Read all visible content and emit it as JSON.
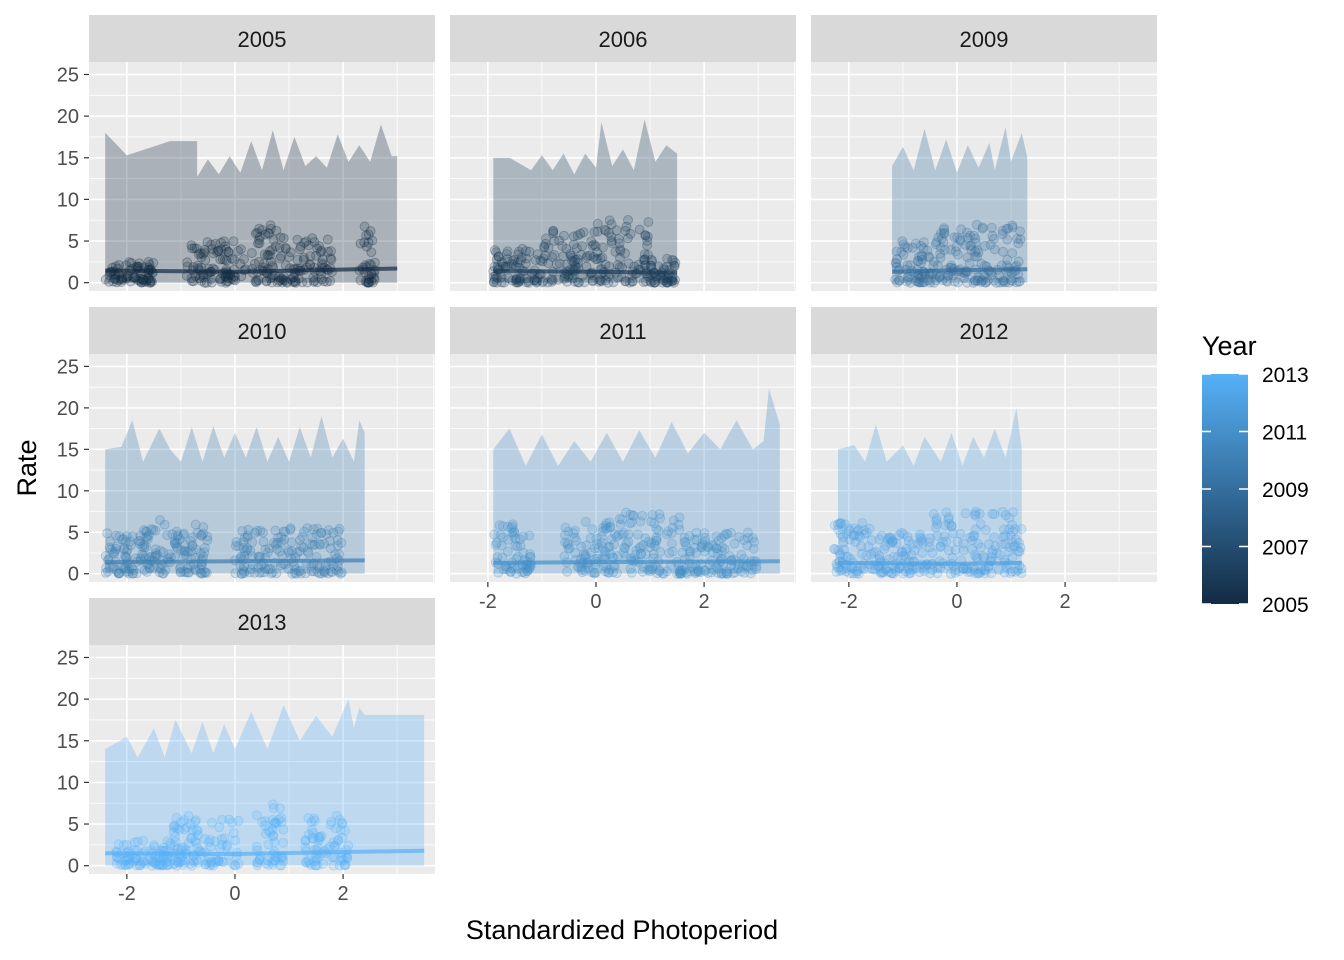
{
  "chart_data": {
    "type": "scatter",
    "facet_variable": "Year",
    "panels": [
      {
        "year": 2005,
        "label": "2005",
        "x_range": [
          -2.4,
          3.0
        ],
        "ribbon_upper": [
          [
            -2.4,
            18
          ],
          [
            -2.0,
            15.3
          ],
          [
            -1.2,
            17
          ],
          [
            -0.7,
            17
          ],
          [
            -0.7,
            12.7
          ],
          [
            -0.5,
            14.8
          ],
          [
            -0.3,
            13
          ],
          [
            -0.1,
            15.2
          ],
          [
            0.1,
            13.2
          ],
          [
            0.3,
            17
          ],
          [
            0.5,
            13.5
          ],
          [
            0.7,
            18.3
          ],
          [
            0.9,
            13.5
          ],
          [
            1.1,
            17.5
          ],
          [
            1.3,
            14
          ],
          [
            1.5,
            15.2
          ],
          [
            1.7,
            13.8
          ],
          [
            1.9,
            17.8
          ],
          [
            2.1,
            14.5
          ],
          [
            2.3,
            16.5
          ],
          [
            2.5,
            14.5
          ],
          [
            2.7,
            19
          ],
          [
            2.9,
            15.2
          ],
          [
            3.0,
            15.2
          ]
        ],
        "fit": [
          [
            -2.4,
            1.45
          ],
          [
            0,
            1.3
          ],
          [
            3.0,
            1.7
          ]
        ],
        "point_clusters": [
          {
            "x": [
              -0.9,
              0.2
            ],
            "ymax": 5
          },
          {
            "x": [
              0.3,
              0.8
            ],
            "ymax": 7
          },
          {
            "x": [
              0.8,
              1.8
            ],
            "ymax": 5.5
          },
          {
            "x": [
              2.3,
              2.6
            ],
            "ymax": 7
          },
          {
            "x": [
              -2.4,
              -1.5
            ],
            "ymax": 2.5
          }
        ]
      },
      {
        "year": 2006,
        "label": "2006",
        "x_range": [
          -2.4,
          1.5
        ],
        "ribbon_upper": [
          [
            -1.9,
            15
          ],
          [
            -1.6,
            15
          ],
          [
            -1.2,
            13.5
          ],
          [
            -1.0,
            15.3
          ],
          [
            -0.8,
            13.5
          ],
          [
            -0.6,
            15.5
          ],
          [
            -0.4,
            13
          ],
          [
            -0.2,
            15.5
          ],
          [
            0.0,
            13.8
          ],
          [
            0.1,
            19.3
          ],
          [
            0.3,
            14
          ],
          [
            0.5,
            16
          ],
          [
            0.7,
            13.5
          ],
          [
            0.9,
            19.6
          ],
          [
            1.1,
            14.5
          ],
          [
            1.3,
            16.5
          ],
          [
            1.5,
            15.5
          ]
        ],
        "fit": [
          [
            -1.9,
            1.4
          ],
          [
            0,
            1.3
          ],
          [
            1.5,
            1.2
          ]
        ],
        "point_clusters": [
          {
            "x": [
              -1.9,
              -1.0
            ],
            "ymax": 4.5
          },
          {
            "x": [
              -1.0,
              0.0
            ],
            "ymax": 6.5
          },
          {
            "x": [
              0.0,
              1.0
            ],
            "ymax": 8
          },
          {
            "x": [
              1.0,
              1.5
            ],
            "ymax": 3
          }
        ]
      },
      {
        "year": 2009,
        "label": "2009",
        "x_range": [
          -1.2,
          1.3
        ],
        "ribbon_upper": [
          [
            -1.2,
            14
          ],
          [
            -1.0,
            16.3
          ],
          [
            -0.8,
            13.5
          ],
          [
            -0.6,
            18.5
          ],
          [
            -0.4,
            13.5
          ],
          [
            -0.2,
            17.2
          ],
          [
            0.0,
            13.2
          ],
          [
            0.2,
            16.5
          ],
          [
            0.4,
            13.8
          ],
          [
            0.6,
            16.8
          ],
          [
            0.7,
            13.5
          ],
          [
            0.9,
            18.7
          ],
          [
            1.0,
            14.5
          ],
          [
            1.2,
            18
          ],
          [
            1.3,
            15
          ]
        ],
        "fit": [
          [
            -1.2,
            1.3
          ],
          [
            0,
            1.5
          ],
          [
            1.3,
            1.6
          ]
        ],
        "point_clusters": [
          {
            "x": [
              -1.2,
              -0.5
            ],
            "ymax": 5
          },
          {
            "x": [
              -0.5,
              0.2
            ],
            "ymax": 7.5
          },
          {
            "x": [
              0.2,
              1.2
            ],
            "ymax": 7
          }
        ]
      },
      {
        "year": 2010,
        "label": "2010",
        "x_range": [
          -2.4,
          2.4
        ],
        "ribbon_upper": [
          [
            -2.4,
            15
          ],
          [
            -2.1,
            15.3
          ],
          [
            -1.9,
            18.5
          ],
          [
            -1.7,
            13.5
          ],
          [
            -1.4,
            17.5
          ],
          [
            -1.2,
            15
          ],
          [
            -1.0,
            13.5
          ],
          [
            -0.8,
            17.7
          ],
          [
            -0.6,
            13.5
          ],
          [
            -0.4,
            17.8
          ],
          [
            -0.2,
            14
          ],
          [
            0.0,
            17
          ],
          [
            0.2,
            14
          ],
          [
            0.4,
            17.7
          ],
          [
            0.6,
            13.5
          ],
          [
            0.8,
            16.5
          ],
          [
            1.0,
            13.5
          ],
          [
            1.2,
            17.7
          ],
          [
            1.4,
            14
          ],
          [
            1.6,
            19
          ],
          [
            1.8,
            14
          ],
          [
            2.0,
            16.3
          ],
          [
            2.2,
            13.5
          ],
          [
            2.3,
            18.5
          ],
          [
            2.4,
            17
          ]
        ],
        "fit": [
          [
            -2.4,
            1.4
          ],
          [
            0,
            1.5
          ],
          [
            2.4,
            1.6
          ]
        ],
        "point_clusters": [
          {
            "x": [
              -2.4,
              -1.7
            ],
            "ymax": 5
          },
          {
            "x": [
              -1.7,
              -1.0
            ],
            "ymax": 6.5
          },
          {
            "x": [
              -1.0,
              -0.5
            ],
            "ymax": 6
          },
          {
            "x": [
              0.0,
              2.0
            ],
            "ymax": 5.5
          }
        ]
      },
      {
        "year": 2011,
        "label": "2011",
        "x_range": [
          -1.9,
          3.4
        ],
        "ribbon_upper": [
          [
            -1.9,
            15
          ],
          [
            -1.6,
            17.5
          ],
          [
            -1.3,
            13
          ],
          [
            -1.0,
            16.8
          ],
          [
            -0.7,
            13
          ],
          [
            -0.4,
            16
          ],
          [
            -0.1,
            13.5
          ],
          [
            0.2,
            17
          ],
          [
            0.5,
            13.5
          ],
          [
            0.8,
            17.3
          ],
          [
            1.1,
            14
          ],
          [
            1.4,
            18.3
          ],
          [
            1.7,
            14.5
          ],
          [
            2.0,
            17
          ],
          [
            2.3,
            15
          ],
          [
            2.6,
            18.5
          ],
          [
            2.9,
            15
          ],
          [
            3.1,
            16
          ],
          [
            3.2,
            22.3
          ],
          [
            3.4,
            18
          ]
        ],
        "fit": [
          [
            -1.9,
            1.3
          ],
          [
            0,
            1.4
          ],
          [
            3.4,
            1.5
          ]
        ],
        "point_clusters": [
          {
            "x": [
              -1.9,
              -1.2
            ],
            "ymax": 6
          },
          {
            "x": [
              -0.6,
              0.3
            ],
            "ymax": 6.5
          },
          {
            "x": [
              0.3,
              1.6
            ],
            "ymax": 7.5
          },
          {
            "x": [
              1.6,
              3.0
            ],
            "ymax": 5
          }
        ]
      },
      {
        "year": 2012,
        "label": "2012",
        "x_range": [
          -2.3,
          1.2
        ],
        "ribbon_upper": [
          [
            -2.2,
            15
          ],
          [
            -1.9,
            15.5
          ],
          [
            -1.7,
            13.5
          ],
          [
            -1.5,
            18
          ],
          [
            -1.3,
            13.5
          ],
          [
            -1.0,
            15.5
          ],
          [
            -0.8,
            13
          ],
          [
            -0.6,
            16.5
          ],
          [
            -0.3,
            13.5
          ],
          [
            -0.1,
            17
          ],
          [
            0.1,
            13
          ],
          [
            0.3,
            16.5
          ],
          [
            0.5,
            14
          ],
          [
            0.7,
            17.5
          ],
          [
            0.9,
            14
          ],
          [
            1.1,
            20
          ],
          [
            1.2,
            15
          ]
        ],
        "fit": [
          [
            -2.2,
            1.3
          ],
          [
            0,
            1.2
          ],
          [
            1.2,
            1.3
          ]
        ],
        "point_clusters": [
          {
            "x": [
              -2.3,
              -1.5
            ],
            "ymax": 6.5
          },
          {
            "x": [
              -1.5,
              -0.6
            ],
            "ymax": 5
          },
          {
            "x": [
              -0.6,
              1.2
            ],
            "ymax": 7.5
          }
        ]
      },
      {
        "year": 2013,
        "label": "2013",
        "x_range": [
          -2.4,
          3.6
        ],
        "ribbon_upper": [
          [
            -2.4,
            14
          ],
          [
            -2.0,
            15.5
          ],
          [
            -1.8,
            13
          ],
          [
            -1.5,
            16.5
          ],
          [
            -1.3,
            13
          ],
          [
            -1.1,
            17.5
          ],
          [
            -0.8,
            13.5
          ],
          [
            -0.6,
            17.3
          ],
          [
            -0.4,
            13.5
          ],
          [
            -0.2,
            17
          ],
          [
            0.0,
            14
          ],
          [
            0.3,
            18.5
          ],
          [
            0.6,
            14
          ],
          [
            0.9,
            19.3
          ],
          [
            1.2,
            15
          ],
          [
            1.5,
            18
          ],
          [
            1.8,
            15.5
          ],
          [
            2.1,
            20
          ],
          [
            2.2,
            16.5
          ],
          [
            2.3,
            19
          ],
          [
            2.4,
            18.1
          ],
          [
            3.5,
            18.1
          ]
        ],
        "fit": [
          [
            -2.4,
            1.5
          ],
          [
            0,
            1.4
          ],
          [
            3.5,
            1.8
          ]
        ],
        "point_clusters": [
          {
            "x": [
              -1.2,
              0.1
            ],
            "ymax": 6
          },
          {
            "x": [
              0.4,
              0.9
            ],
            "ymax": 7.5
          },
          {
            "x": [
              1.3,
              2.1
            ],
            "ymax": 6
          },
          {
            "x": [
              -2.2,
              -1.2
            ],
            "ymax": 3
          }
        ]
      }
    ],
    "x_ticks": [
      -2,
      0,
      2
    ],
    "x_tick_labels": [
      "-2",
      "0",
      "2"
    ],
    "x_range": [
      -2.7,
      3.7
    ],
    "y_ticks": [
      0,
      5,
      10,
      15,
      20,
      25
    ],
    "y_tick_labels": [
      "0",
      "5",
      "10",
      "15",
      "20",
      "25"
    ],
    "y_range": [
      -1.0,
      26.5
    ],
    "xlabel": "Standardized Photoperiod",
    "ylabel": "Rate",
    "legend": {
      "title": "Year",
      "position": "right",
      "type": "continuous colorbar",
      "range": [
        2005,
        2013
      ],
      "breaks": [
        2005,
        2007,
        2009,
        2011,
        2013
      ],
      "break_labels": [
        "2005",
        "2007",
        "2009",
        "2011",
        "2013"
      ],
      "low_color": "#132B43",
      "high_color": "#56B1F7"
    },
    "grid": true,
    "colors": {
      "panel_background": "#EBEBEB",
      "grid": "#FFFFFF",
      "strip_background": "#D9D9D9",
      "ribbon": "#999999",
      "fill_low": "#132B43",
      "fill_high": "#56B1F7"
    }
  }
}
